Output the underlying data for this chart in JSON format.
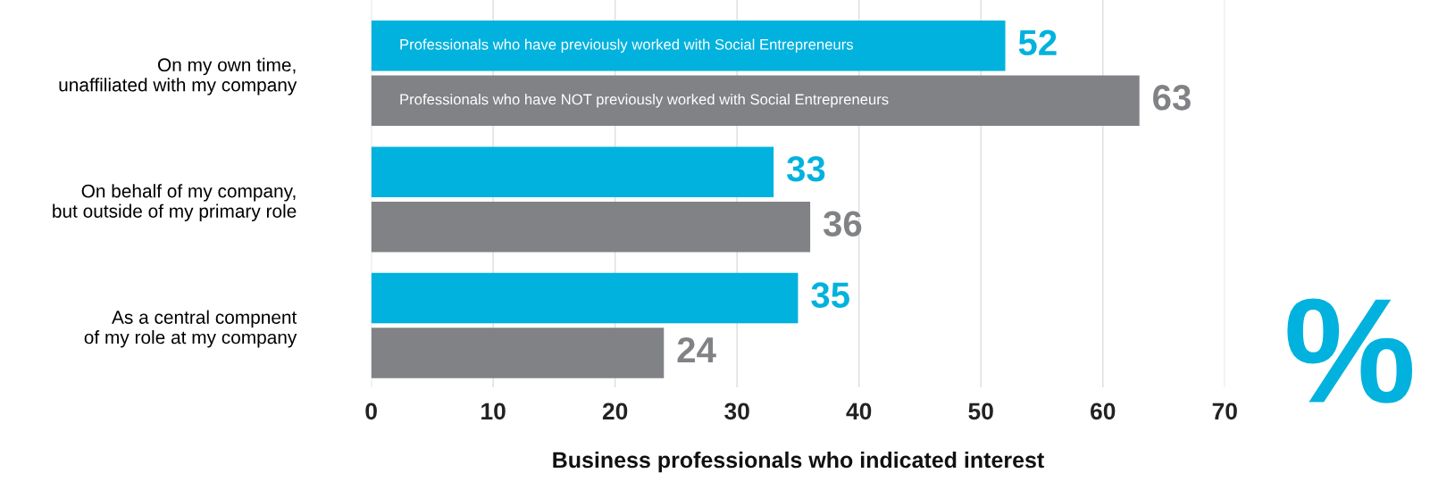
{
  "chart_data": {
    "type": "bar",
    "orientation": "horizontal",
    "xlabel": "Business professionals who indicated interest",
    "categories": [
      "On my own time,\nunaffiliated with my company",
      "On behalf of my company,\nbut outside of my primary role",
      "As a central compnent\nof my role at my company"
    ],
    "series": [
      {
        "name": "Professionals who have previously worked with Social Entrepreneurs",
        "color": "#00b2dd",
        "values": [
          52,
          33,
          35
        ]
      },
      {
        "name": "Professionals who have NOT previously worked with Social Entrepreneurs",
        "color": "#808285",
        "values": [
          63,
          36,
          24
        ]
      }
    ],
    "xlim": [
      0,
      70
    ],
    "xticks": [
      0,
      10,
      20,
      30,
      40,
      50,
      60,
      70
    ],
    "grid": "x",
    "data_labels": true,
    "legend": false,
    "annotations": [
      "%"
    ]
  }
}
